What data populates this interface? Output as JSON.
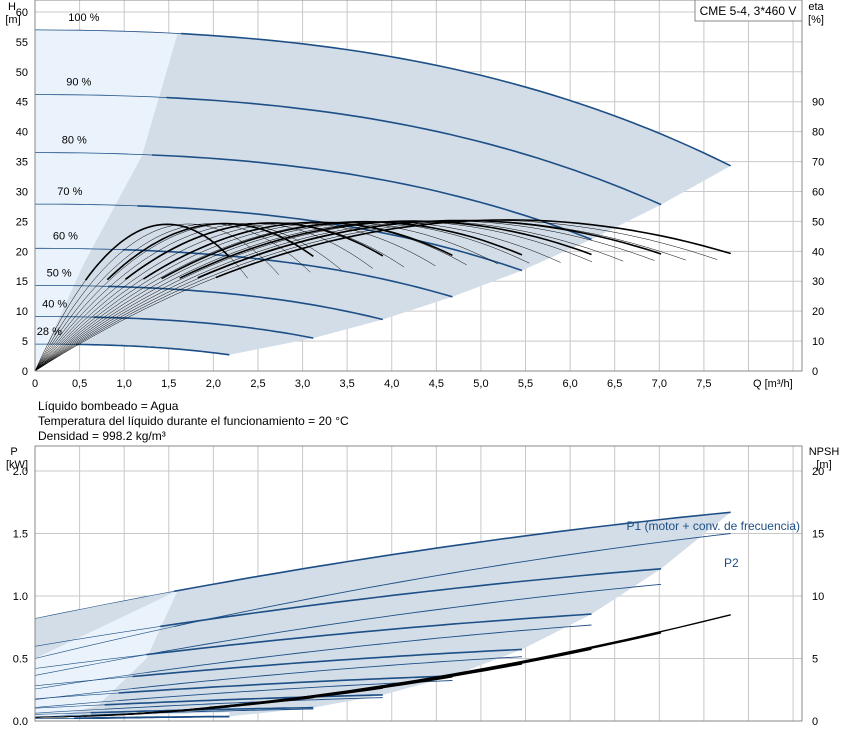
{
  "model_label": "CME 5-4, 3*460 V",
  "colors": {
    "envelope_fill": "#d3dde8",
    "light_fill": "#eaf3fb",
    "curve_blue": "#1d4f86",
    "curve_black": "#000000",
    "grid": "#c8c8c8"
  },
  "fluid_info": [
    "Líquido bombeado = Agua",
    "Temperatura del líquido durante el funcionamiento = 20 °C",
    "Densidad = 998.2 kg/m³"
  ],
  "chart_data": [
    {
      "type": "line",
      "name": "qh",
      "left_axis": {
        "symbol": "H",
        "unit": "[m]",
        "ylim": [
          0,
          62
        ],
        "ticks": [
          0,
          5,
          10,
          15,
          20,
          25,
          30,
          35,
          40,
          45,
          50,
          55,
          60
        ]
      },
      "right_axis": {
        "symbol": "eta",
        "unit": "[%]",
        "ylim": [
          0,
          124
        ],
        "ticks": [
          0,
          10,
          20,
          30,
          40,
          50,
          60,
          70,
          80,
          90
        ]
      },
      "x_axis": {
        "label": "Q [m³/h]",
        "xlim": [
          0,
          8.6
        ],
        "ticks": [
          0,
          0.5,
          1.0,
          1.5,
          2.0,
          2.5,
          3.0,
          3.5,
          4.0,
          4.5,
          5.0,
          5.5,
          6.0,
          6.5,
          7.0,
          7.5
        ]
      },
      "grid": true,
      "speeds": [
        {
          "label": "100 %",
          "h0": 57,
          "qmax": 7.8,
          "hend": 34.3
        },
        {
          "label": "90 %",
          "h0": 46.2,
          "qmax": 7.02,
          "hend": 27.8
        },
        {
          "label": "80 %",
          "h0": 36.5,
          "qmax": 6.24,
          "hend": 22.0
        },
        {
          "label": "70 %",
          "h0": 27.9,
          "qmax": 5.46,
          "hend": 16.8
        },
        {
          "label": "60 %",
          "h0": 20.5,
          "qmax": 4.68,
          "hend": 12.4
        },
        {
          "label": "50 %",
          "h0": 14.3,
          "qmax": 3.9,
          "hend": 8.6
        },
        {
          "label": "40 %",
          "h0": 9.1,
          "qmax": 3.12,
          "hend": 5.5
        },
        {
          "label": "28 %",
          "h0": 4.5,
          "qmax": 2.18,
          "hend": 2.7
        }
      ],
      "efficiency_peak_pct": 50.5,
      "efficiency_peak_q_at_100": 5.3
    },
    {
      "type": "line",
      "name": "power",
      "left_axis": {
        "symbol": "P",
        "unit": "[kW]",
        "ylim": [
          0,
          2.2
        ],
        "ticks": [
          0.0,
          0.5,
          1.0,
          1.5,
          2.0
        ]
      },
      "right_axis": {
        "symbol": "NPSH",
        "unit": "[m]",
        "ylim": [
          0,
          22
        ],
        "ticks": [
          0,
          5,
          10,
          15,
          20
        ]
      },
      "xlim": [
        0,
        8.6
      ],
      "grid": true,
      "series": [
        {
          "name": "P1 (motor + conv. de frecuencia)",
          "values_at_100": {
            "start": 0.82,
            "end": 1.67
          }
        },
        {
          "name": "P2",
          "values_at_100": {
            "start": 0.5,
            "end": 1.5
          }
        }
      ],
      "npsh_max": 8.2
    }
  ]
}
